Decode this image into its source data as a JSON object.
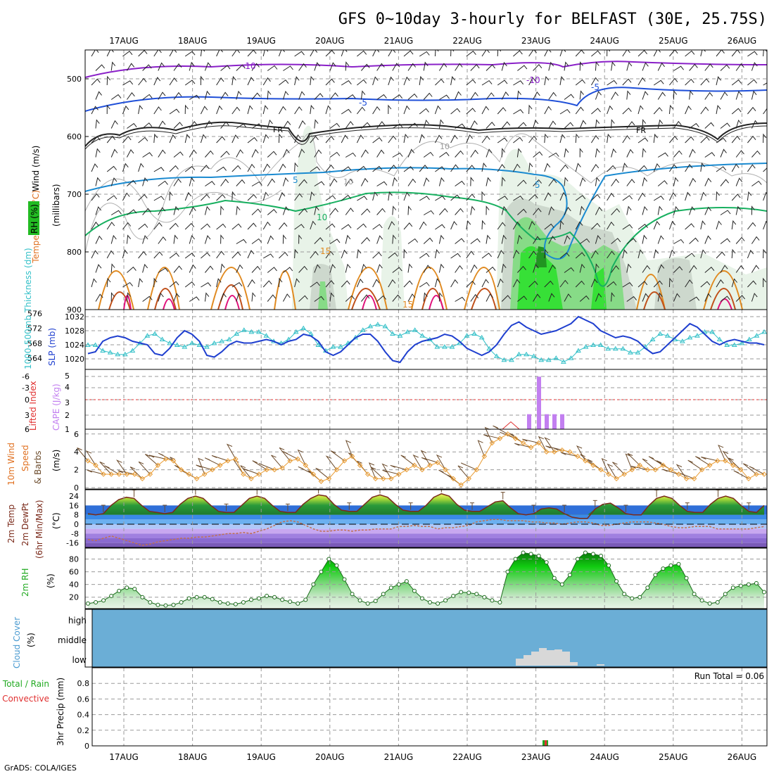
{
  "title": "GFS 0~10day 3-hourly for BELFAST (30E, 25.75S)",
  "credit": "GrADS: COLA/IGES",
  "dates": [
    "17AUG",
    "18AUG",
    "19AUG",
    "20AUG",
    "21AUG",
    "22AUG",
    "23AUG",
    "24AUG",
    "25AUG",
    "26AUG"
  ],
  "colors": {
    "grid": "#9a9a9a",
    "slp": "#1f3fcf",
    "thickness": "#33c0c8",
    "cape": "#c27ff0",
    "li": "#e03030",
    "wind": "#e89a30",
    "barb": "#6b4a2a",
    "temp_band": "#2f6fd8",
    "rh_fill": "#22bb22",
    "cloud": "#6baed6",
    "precip_total": "#22aa22",
    "precip_conv": "#e03030"
  },
  "panels": {
    "upper": {
      "label_rh": "RH (%)",
      "label_temp": "Temperature (°C)",
      "label_wind": "Wind (m/s)",
      "label_mb": "(millibars)",
      "ticks": [
        "500",
        "600",
        "700",
        "800",
        "900"
      ],
      "contour_labels": [
        "-10",
        "-10",
        "-5",
        "-5",
        "FR",
        "FR",
        "10",
        "10",
        "5",
        "5",
        "10",
        "15",
        "15"
      ]
    },
    "slp": {
      "label_thk": "1000-500mb Thickness (dm)",
      "label_slp": "SLP (mb)",
      "ticks_left": [
        "576",
        "572",
        "568",
        "564"
      ],
      "ticks_right": [
        "1032",
        "1028",
        "1024",
        "1020"
      ]
    },
    "cape": {
      "label_li": "Lifted Index",
      "label_cape": "CAPE (J/kg)",
      "ticks_left": [
        "-6",
        "-3",
        "0",
        "3",
        "6"
      ],
      "ticks_right": [
        "5",
        "4",
        "3",
        "2",
        "1"
      ]
    },
    "wind": {
      "label_a": "10m Wind",
      "label_b": "Speed",
      "label_c": "& Barbs",
      "label_units": "(m/s)",
      "ticks": [
        "6",
        "4",
        "2",
        "0"
      ]
    },
    "temp": {
      "label_a": "2m Temp",
      "label_b": "2m DewPt",
      "label_c": "(6hr Min/Max)",
      "label_units": "(°C)",
      "ticks": [
        "24",
        "16",
        "8",
        "0",
        "-8",
        "-16"
      ]
    },
    "rh": {
      "label_a": "2m RH",
      "label_units": "(%)",
      "ticks": [
        "80",
        "60",
        "40",
        "20"
      ]
    },
    "cloud": {
      "label_a": "Cloud Cover",
      "label_units": "(%)",
      "levels": [
        "high",
        "middle",
        "low"
      ]
    },
    "precip": {
      "label_total": "Total / Rain",
      "label_conv": "Convective",
      "label_a": "3hr Precip (mm)",
      "ticks": [
        "0.8",
        "0.6",
        "0.4",
        "0.2",
        "0"
      ],
      "run_total": "Run Total = 0.06"
    }
  },
  "chart_data": [
    {
      "type": "line",
      "name": "slp_thickness",
      "x_step_hours": 3,
      "series": [
        {
          "name": "SLP",
          "values": [
            1021.5,
            1022,
            1025,
            1026,
            1026.5,
            1026,
            1025,
            1024.5,
            1024,
            1021.5,
            1021,
            1023,
            1026,
            1028,
            1027,
            1025,
            1021,
            1020.5,
            1022,
            1024,
            1025,
            1024.5,
            1024.5,
            1025,
            1025.5,
            1025,
            1024,
            1025,
            1025.5,
            1027,
            1026.5,
            1025,
            1022,
            1021,
            1022,
            1024,
            1026,
            1027,
            1027,
            1025,
            1022,
            1019.5,
            1019,
            1022,
            1024,
            1025,
            1025.5,
            1026,
            1027,
            1026.5,
            1025,
            1023,
            1022,
            1021,
            1022,
            1024,
            1027,
            1029.5,
            1030.5,
            1029,
            1028,
            1027,
            1027.5,
            1028,
            1029,
            1030,
            1032,
            1031,
            1030,
            1028,
            1027,
            1026,
            1026.5,
            1026,
            1025,
            1023,
            1021.5,
            1022,
            1024,
            1026,
            1028,
            1030,
            1029,
            1027,
            1025,
            1024,
            1025,
            1025.5,
            1025,
            1024.5,
            1024.5,
            1024
          ]
        },
        {
          "name": "Thickness",
          "values": [
            567.5,
            567.5,
            566,
            565.5,
            565,
            565,
            566,
            568,
            570,
            570.5,
            569,
            568,
            567.5,
            567,
            568,
            567.5,
            567,
            568,
            568.5,
            569,
            570.5,
            571.5,
            571,
            571,
            570,
            568.5,
            568,
            569,
            571,
            572,
            570.5,
            567.5,
            566,
            567,
            567,
            568,
            569.5,
            571.5,
            572.5,
            573,
            572.5,
            570.5,
            570,
            571,
            571.5,
            570,
            569,
            567,
            567,
            567,
            568,
            570,
            570.5,
            569.5,
            566.5,
            564.5,
            563.5,
            563.5,
            565,
            565,
            564.5,
            563.5,
            563.5,
            564,
            563,
            564,
            566,
            567,
            567.5,
            567.5,
            566.5,
            566.5,
            566.5,
            565.5,
            565.5,
            567,
            569,
            570.5,
            570,
            569,
            568.5,
            569.5,
            570,
            571,
            571,
            569,
            567.5,
            567.5,
            568,
            569,
            570,
            571
          ]
        }
      ]
    },
    {
      "type": "bar",
      "name": "cape",
      "categories": [
        "23AUG00",
        "23AUG03",
        "23AUG06",
        "23AUG09",
        "23AUG12"
      ],
      "values": [
        2,
        5,
        2,
        2,
        2
      ]
    },
    {
      "type": "line",
      "name": "lifted_index",
      "x": [
        "22AUG15",
        "22AUG18",
        "22AUG21"
      ],
      "values": [
        6,
        4.5,
        6
      ]
    },
    {
      "type": "line",
      "name": "wind_speed_10m",
      "values": [
        3,
        2.5,
        1.5,
        1.5,
        1.5,
        1.5,
        1.5,
        1,
        1.5,
        2.5,
        3.2,
        3,
        2,
        1.5,
        1,
        1.5,
        2,
        2.5,
        3,
        3.2,
        1.5,
        1,
        1.5,
        2,
        2,
        2.2,
        3,
        3.2,
        2.5,
        1.5,
        0.7,
        1,
        2,
        3,
        3.5,
        2.5,
        1.5,
        1,
        1,
        1,
        1.5,
        2,
        2.5,
        2,
        2.5,
        2.8,
        2,
        1,
        0.3,
        1,
        2,
        3.5,
        5,
        5.5,
        6,
        5.5,
        5,
        4.5,
        5,
        4,
        4,
        4.2,
        4,
        3.5,
        3,
        2.5,
        2,
        1.5,
        1,
        1.5,
        2,
        2.5,
        2,
        2,
        2.5,
        2,
        1.5,
        1,
        1,
        2,
        2.5,
        3,
        3,
        2.5,
        2,
        1,
        1.5,
        1.5
      ]
    },
    {
      "type": "line",
      "name": "temp_2m",
      "values": [
        9,
        8,
        9,
        16,
        21,
        23,
        22,
        16,
        11,
        10,
        9,
        10,
        17,
        22,
        24,
        22,
        16,
        11,
        10,
        10,
        16,
        22,
        24,
        22,
        16,
        11,
        10,
        10,
        17,
        22,
        25,
        24,
        17,
        12,
        11,
        11,
        17,
        23,
        25,
        23,
        17,
        12,
        11,
        11,
        16,
        23,
        26,
        24,
        17,
        12,
        11,
        11,
        15,
        19,
        20,
        14,
        9,
        8,
        9,
        13,
        14,
        13,
        9,
        6,
        5,
        5,
        13,
        17,
        18,
        14,
        9,
        8,
        8,
        16,
        22,
        24,
        22,
        16,
        11,
        10,
        10,
        17,
        22,
        24,
        22,
        16,
        11,
        10,
        16
      ]
    },
    {
      "type": "line",
      "name": "dewpt_2m",
      "values": [
        -13,
        -14,
        -12,
        -10,
        -12,
        -14,
        -16,
        -18,
        -17,
        -15,
        -14,
        -13,
        -12,
        -12,
        -11,
        -11,
        -10,
        -9,
        -8,
        -8,
        -7,
        -8,
        -6,
        -4,
        -1,
        2,
        3,
        2,
        -1,
        -4,
        -6,
        -6,
        -5,
        -5,
        -6,
        -5,
        -5,
        -4,
        -4,
        -4,
        -2,
        -2,
        -1,
        -2,
        -2,
        -4,
        -3,
        -3,
        -2,
        -1,
        2,
        3,
        4,
        4,
        3,
        3,
        3,
        2,
        2,
        1,
        1,
        0,
        1,
        2,
        2,
        1,
        -1,
        -1,
        0,
        1,
        2,
        2,
        2,
        1,
        0,
        -2,
        -3,
        -3,
        -2,
        -2,
        -2,
        -4,
        -4,
        -4,
        -4,
        -4,
        -3,
        -2
      ]
    },
    {
      "type": "area",
      "name": "rh_2m",
      "values": [
        10,
        12,
        15,
        22,
        30,
        35,
        33,
        20,
        12,
        8,
        7,
        8,
        12,
        18,
        20,
        20,
        17,
        12,
        10,
        9,
        12,
        16,
        18,
        22,
        20,
        16,
        13,
        10,
        16,
        40,
        60,
        80,
        70,
        48,
        25,
        15,
        10,
        14,
        25,
        35,
        40,
        45,
        30,
        18,
        12,
        10,
        15,
        22,
        28,
        27,
        25,
        20,
        15,
        12,
        60,
        80,
        90,
        88,
        85,
        75,
        50,
        40,
        55,
        80,
        90,
        88,
        85,
        70,
        45,
        25,
        18,
        20,
        35,
        55,
        65,
        70,
        72,
        50,
        25,
        15,
        10,
        12,
        25,
        35,
        38,
        40,
        42,
        28
      ]
    },
    {
      "type": "bar",
      "name": "cloud_low",
      "categories": [
        "22AUG18",
        "22AUG21",
        "23AUG00",
        "23AUG03",
        "23AUG06",
        "23AUG09",
        "23AUG12",
        "23AUG15",
        "24AUG00"
      ],
      "values": [
        10,
        15,
        20,
        25,
        22,
        23,
        20,
        5,
        2
      ]
    },
    {
      "type": "bar",
      "name": "precip_3hr",
      "categories": [
        "23AUG03"
      ],
      "values": [
        0.06
      ],
      "ylim": [
        0,
        1
      ]
    }
  ]
}
